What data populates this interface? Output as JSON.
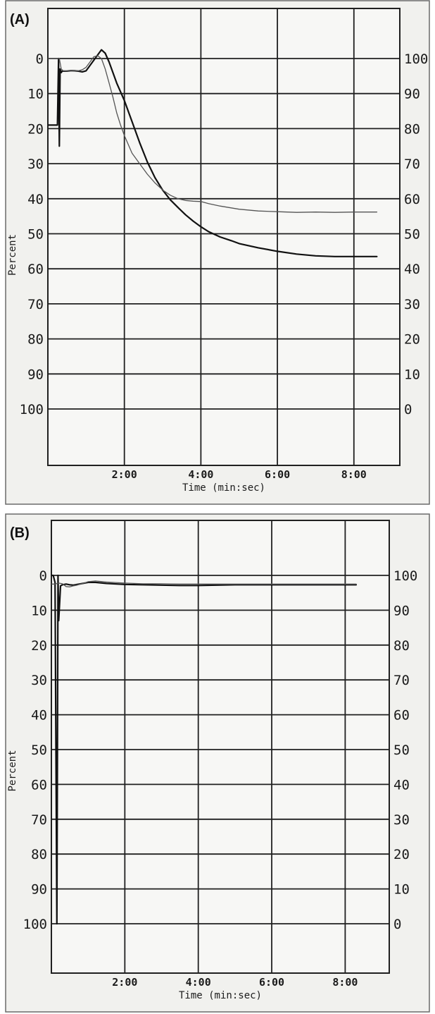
{
  "chart_data": [
    {
      "type": "line",
      "panel_label": "(A)",
      "xlabel": "Time (min:sec)",
      "ylabel": "Percent",
      "x_ticks": [
        "2:00",
        "4:00",
        "6:00",
        "8:00"
      ],
      "xlim": [
        0,
        9.2
      ],
      "y_left_ticks": [
        "0",
        "10",
        "20",
        "30",
        "40",
        "50",
        "60",
        "70",
        "80",
        "90",
        "100"
      ],
      "y_right_ticks": [
        "100",
        "90",
        "80",
        "70",
        "60",
        "50",
        "40",
        "30",
        "20",
        "10",
        "0"
      ],
      "ylim": [
        0,
        100
      ],
      "grid": true,
      "series": [
        {
          "color": "#111111",
          "x": [
            0,
            0.1,
            0.2,
            0.25,
            0.28,
            0.3,
            0.32,
            0.35,
            0.38,
            0.4,
            0.5,
            0.6,
            0.7,
            0.8,
            0.9,
            1.0,
            1.1,
            1.2,
            1.3,
            1.4,
            1.5,
            1.6,
            1.7,
            1.8,
            2.0,
            2.2,
            2.4,
            2.6,
            2.8,
            3.0,
            3.2,
            3.4,
            3.6,
            3.8,
            4.0,
            4.2,
            4.5,
            4.8,
            5.0,
            5.5,
            6.0,
            6.5,
            7.0,
            7.5,
            8.0,
            8.5,
            8.6
          ],
          "y": [
            81,
            81,
            81,
            81,
            100,
            75,
            97,
            96,
            96.5,
            96.4,
            96.4,
            96.5,
            96.5,
            96.4,
            96.2,
            96.5,
            98,
            99.5,
            101,
            102.5,
            101.5,
            99,
            96,
            93,
            88,
            82,
            76,
            70.5,
            66,
            62.5,
            59.7,
            57.5,
            55.4,
            53.6,
            52,
            50.6,
            49.1,
            48,
            47.2,
            46,
            45,
            44.2,
            43.7,
            43.5,
            43.5,
            43.5,
            43.5
          ]
        },
        {
          "color": "#555555",
          "x": [
            0,
            0.1,
            0.2,
            0.3,
            0.35,
            0.4,
            0.5,
            0.6,
            0.7,
            0.8,
            0.9,
            1.0,
            1.1,
            1.2,
            1.3,
            1.4,
            1.5,
            1.6,
            1.7,
            1.8,
            1.9,
            2.0,
            2.2,
            2.4,
            2.6,
            2.8,
            3.0,
            3.2,
            3.4,
            3.6,
            3.8,
            4.0,
            4.2,
            4.5,
            5.0,
            5.5,
            6.0,
            6.5,
            7.0,
            7.5,
            8.0,
            8.5,
            8.6
          ],
          "y": [
            100,
            100,
            100,
            100,
            97,
            96.5,
            96.4,
            96.4,
            96.5,
            96.5,
            96.8,
            97.5,
            99,
            100.5,
            100.8,
            100,
            97,
            93,
            89,
            84.5,
            81,
            78,
            73,
            70,
            67,
            64.5,
            62.5,
            61,
            60,
            59.5,
            59.3,
            59.2,
            58.6,
            57.9,
            57,
            56.5,
            56.3,
            56.1,
            56.2,
            56.1,
            56.2,
            56.2,
            56.2
          ]
        }
      ]
    },
    {
      "type": "line",
      "panel_label": "(B)",
      "xlabel": "Time (min:sec)",
      "ylabel": "Percent",
      "x_ticks": [
        "2:00",
        "4:00",
        "6:00",
        "8:00"
      ],
      "xlim": [
        0,
        9.2
      ],
      "y_left_ticks": [
        "0",
        "10",
        "20",
        "30",
        "40",
        "50",
        "60",
        "70",
        "80",
        "90",
        "100"
      ],
      "y_right_ticks": [
        "100",
        "90",
        "80",
        "70",
        "60",
        "50",
        "40",
        "30",
        "20",
        "10",
        "0"
      ],
      "ylim": [
        0,
        100
      ],
      "grid": true,
      "series": [
        {
          "color": "#111111",
          "x": [
            0,
            0.05,
            0.1,
            0.15,
            0.18,
            0.2,
            0.25,
            0.3,
            0.4,
            0.5,
            0.6,
            0.7,
            0.8,
            0.9,
            1.0,
            1.2,
            1.5,
            2.0,
            2.5,
            3.0,
            3.5,
            4.0,
            4.5,
            5.0,
            6.0,
            7.0,
            8.0,
            8.3
          ],
          "y": [
            100,
            100,
            98,
            0,
            100,
            87,
            97,
            97.3,
            97.5,
            97.3,
            97.2,
            97.4,
            97.6,
            97.8,
            98,
            98,
            97.7,
            97.4,
            97.3,
            97.2,
            97.1,
            97.1,
            97.2,
            97.3,
            97.3,
            97.3,
            97.3,
            97.3
          ]
        },
        {
          "color": "#555555",
          "x": [
            0,
            0.1,
            0.2,
            0.3,
            0.4,
            0.5,
            0.6,
            0.7,
            0.8,
            0.9,
            1.0,
            1.2,
            1.5,
            2.0,
            2.5,
            3.0,
            3.5,
            4.0,
            4.5,
            5.0,
            6.0,
            7.0,
            8.0,
            8.3
          ],
          "y": [
            97.5,
            97.5,
            97.8,
            97.6,
            96.8,
            96.7,
            97.0,
            97.2,
            97.5,
            97.8,
            98.2,
            98.4,
            98.1,
            97.8,
            97.6,
            97.6,
            97.5,
            97.5,
            97.5,
            97.5,
            97.5,
            97.5,
            97.5,
            97.5
          ]
        }
      ]
    }
  ]
}
